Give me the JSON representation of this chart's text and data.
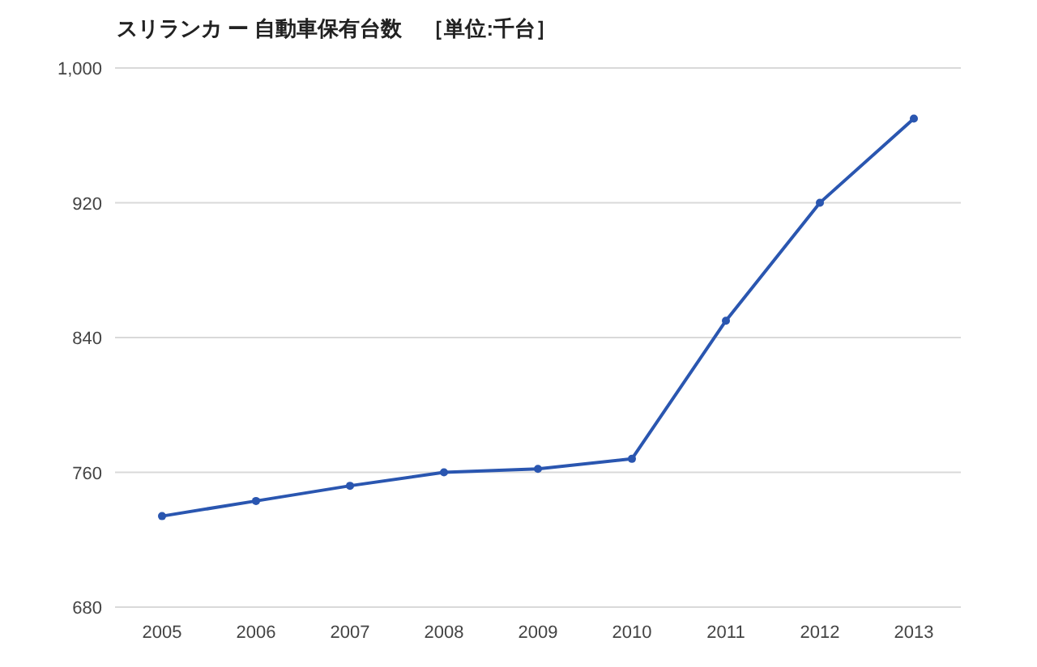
{
  "chart_data": {
    "type": "line",
    "title": "スリランカ ー 自動車保有台数　［単位:千台］",
    "categories": [
      "2005",
      "2006",
      "2007",
      "2008",
      "2009",
      "2010",
      "2011",
      "2012",
      "2013"
    ],
    "series": [
      {
        "color": "#2a56b0",
        "values": [
          734,
          743,
          752,
          760,
          762,
          768,
          850,
          920,
          970
        ]
      }
    ],
    "ylim": [
      680,
      1000
    ],
    "yticks": [
      680,
      760,
      840,
      920,
      {
        "value": 1000,
        "label": "1,000"
      }
    ],
    "grid": "y",
    "marker": "circle",
    "line_style": "solid"
  }
}
